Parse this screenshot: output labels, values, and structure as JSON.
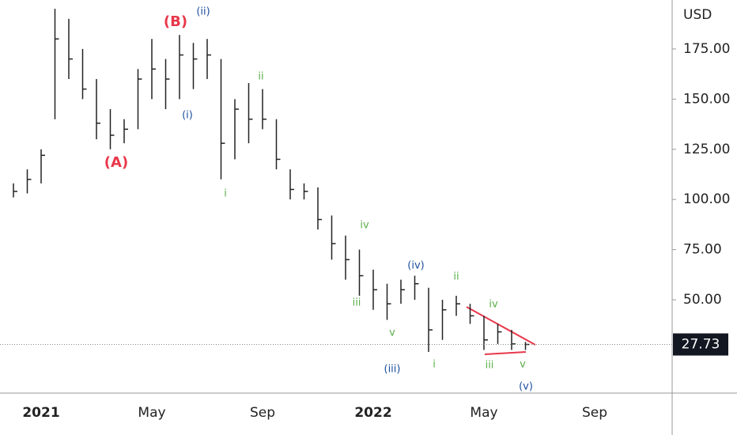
{
  "chart_data": {
    "type": "ohlc",
    "y_label": "USD",
    "categories": [
      null,
      null,
      "2021",
      null,
      null,
      null,
      null,
      null,
      null,
      null,
      "May",
      null,
      null,
      null,
      null,
      null,
      null,
      null,
      "Sep",
      null,
      null,
      null,
      null,
      null,
      null,
      null,
      "2022",
      null,
      null,
      null,
      null,
      null,
      null,
      null,
      "May",
      null,
      null,
      null,
      null,
      null,
      null,
      null,
      "Sep",
      null,
      null,
      null,
      null,
      null
    ],
    "high": [
      108,
      115,
      125,
      195,
      190,
      175,
      160,
      145,
      140,
      165,
      180,
      170,
      182,
      178,
      180,
      170,
      150,
      158,
      155,
      140,
      115,
      108,
      106,
      92,
      82,
      75,
      65,
      58,
      60,
      62,
      56,
      50,
      52,
      48,
      42,
      38,
      35,
      29,
      null,
      null,
      null,
      null,
      null,
      null,
      null,
      null,
      null,
      null
    ],
    "low": [
      101,
      103,
      108,
      140,
      160,
      150,
      130,
      125,
      128,
      135,
      150,
      145,
      150,
      155,
      160,
      110,
      120,
      128,
      135,
      115,
      100,
      100,
      85,
      70,
      60,
      52,
      45,
      40,
      48,
      50,
      24,
      30,
      42,
      38,
      25,
      28,
      25,
      25,
      null,
      null,
      null,
      null,
      null,
      null,
      null,
      null,
      null,
      null
    ],
    "close": [
      104,
      110,
      122,
      180,
      170,
      155,
      138,
      132,
      135,
      160,
      165,
      160,
      172,
      170,
      172,
      128,
      145,
      140,
      140,
      120,
      105,
      104,
      90,
      78,
      70,
      62,
      55,
      48,
      55,
      58,
      35,
      45,
      48,
      42,
      30,
      34,
      28,
      27.73,
      null,
      null,
      null,
      null,
      null,
      null,
      null,
      null,
      null,
      null
    ],
    "color": "#222222",
    "ylim": [
      3.5,
      199.4
    ],
    "yticks": [
      {
        "value": 50,
        "label": "50.00"
      },
      {
        "value": 75,
        "label": "75.00"
      },
      {
        "value": 100,
        "label": "100.00"
      },
      {
        "value": 125,
        "label": "125.00"
      },
      {
        "value": 150,
        "label": "150.00"
      },
      {
        "value": 175,
        "label": "175.00"
      }
    ],
    "annotations": [
      {
        "text": "(A)",
        "color": "#e8374a"
      },
      {
        "text": "(B)",
        "color": "#e8374a"
      },
      {
        "text": "(ii)",
        "color": "#1e4f9c"
      },
      {
        "text": "(i)",
        "color": "#1e4f9c"
      },
      {
        "text": "i",
        "color": "#5aaf4a"
      },
      {
        "text": "ii",
        "color": "#5aaf4a"
      },
      {
        "text": "iv",
        "color": "#5aaf4a"
      },
      {
        "text": "iii",
        "color": "#5aaf4a"
      },
      {
        "text": "v",
        "color": "#5aaf4a"
      },
      {
        "text": "(iii)",
        "color": "#1e4f9c"
      },
      {
        "text": "(iv)",
        "color": "#1e4f9c"
      },
      {
        "text": "ii",
        "color": "#5aaf4a"
      },
      {
        "text": "i",
        "color": "#5aaf4a"
      },
      {
        "text": "iv",
        "color": "#5aaf4a"
      },
      {
        "text": "iii",
        "color": "#5aaf4a"
      },
      {
        "text": "v",
        "color": "#5aaf4a"
      },
      {
        "text": "(v)",
        "color": "#1e4f9c"
      }
    ]
  }
}
